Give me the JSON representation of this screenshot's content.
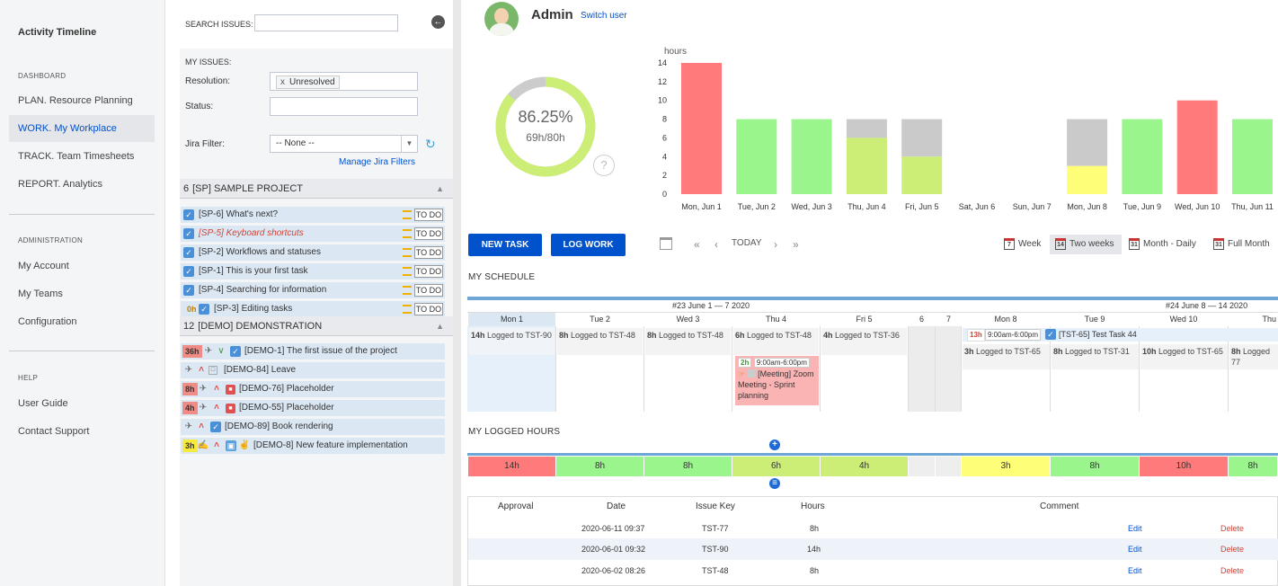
{
  "nav": {
    "app_title": "Activity Timeline",
    "dashboard_header": "DASHBOARD",
    "plan": "PLAN. Resource Planning",
    "work": "WORK. My Workplace",
    "track": "TRACK. Team Timesheets",
    "report": "REPORT. Analytics",
    "admin_header": "ADMINISTRATION",
    "my_account": "My Account",
    "my_teams": "My Teams",
    "configuration": "Configuration",
    "help_header": "HELP",
    "user_guide": "User Guide",
    "contact_support": "Contact Support"
  },
  "issues": {
    "search_label": "SEARCH ISSUES:",
    "my_issues": "MY ISSUES:",
    "resolution_label": "Resolution:",
    "resolution_value": "Unresolved",
    "resolution_remove": "x",
    "status_label": "Status:",
    "filter_label": "Jira Filter:",
    "filter_value": "-- None --",
    "manage_filters": "Manage Jira Filters",
    "group1": {
      "count": "6",
      "name": "[SP] SAMPLE PROJECT"
    },
    "sp_items": [
      {
        "title": "[SP-6] What's next?",
        "status": "TO DO"
      },
      {
        "title": "[SP-5] Keyboard shortcuts",
        "status": "TO DO"
      },
      {
        "title": "[SP-2] Workflows and statuses",
        "status": "TO DO"
      },
      {
        "title": "[SP-1] This is your first task",
        "status": "TO DO"
      },
      {
        "title": "[SP-4] Searching for information",
        "status": "TO DO"
      },
      {
        "title": "[SP-3] Editing tasks",
        "status": "TO DO",
        "badge": "0h"
      }
    ],
    "group2": {
      "count": "12",
      "name": "[DEMO] DEMONSTRATION"
    },
    "demo_items": [
      {
        "title": "[DEMO-1] The first issue of the project",
        "badge": "36h"
      },
      {
        "title": "[DEMO-84] Leave"
      },
      {
        "title": "[DEMO-76] Placeholder",
        "badge": "8h"
      },
      {
        "title": "[DEMO-55] Placeholder",
        "badge": "4h"
      },
      {
        "title": "[DEMO-89] Book rendering"
      },
      {
        "title": "[DEMO-8] New feature implementation",
        "badge": "3h"
      }
    ]
  },
  "user": {
    "name": "Admin",
    "switch": "Switch user"
  },
  "utilization": {
    "percent_text": "86.25%",
    "hours_text": "69h/80h",
    "percent": 86.25
  },
  "chart_data": {
    "type": "bar",
    "ylabel": "hours",
    "ylim": [
      0,
      14
    ],
    "yticks": [
      0,
      2,
      4,
      6,
      8,
      10,
      12,
      14
    ],
    "categories": [
      "Mon, Jun 1",
      "Tue, Jun 2",
      "Wed, Jun 3",
      "Thu, Jun 4",
      "Fri, Jun 5",
      "Sat, Jun 6",
      "Sun, Jun 7",
      "Mon, Jun 8",
      "Tue, Jun 9",
      "Wed, Jun 10",
      "Thu, Jun 11"
    ],
    "series": [
      {
        "name": "logged",
        "values": [
          14,
          8,
          8,
          6,
          4,
          0,
          0,
          3,
          8,
          10,
          8
        ]
      },
      {
        "name": "remaining",
        "values": [
          0,
          0,
          0,
          2,
          4,
          0,
          0,
          5,
          0,
          0,
          0
        ]
      }
    ],
    "colors": [
      "#ff7b7b",
      "#99f58c",
      "#99f58c",
      "#ccee77",
      "#ccee77",
      "#ffffff",
      "#ffffff",
      "#ffff77",
      "#99f58c",
      "#ff7b7b",
      "#99f58c"
    ],
    "remaining_color": "#cacaca"
  },
  "toolbar": {
    "new_task": "NEW TASK",
    "log_work": "LOG WORK",
    "today": "TODAY",
    "week": "Week",
    "two_weeks": "Two weeks",
    "month_daily": "Month - Daily",
    "full_month": "Full Month",
    "cal7": "7",
    "cal14": "14",
    "cal31a": "31",
    "cal31b": "31"
  },
  "schedule": {
    "title": "MY SCHEDULE",
    "week1": "#23 June 1 — 7 2020",
    "week2": "#24 June 8 — 14 2020",
    "days": [
      "Mon 1",
      "Tue 2",
      "Wed 3",
      "Thu 4",
      "Fri 5",
      "6",
      "7",
      "Mon 8",
      "Tue 9",
      "Wed 10",
      "Thu"
    ],
    "logs": [
      {
        "hours": "14h",
        "text": "Logged to TST-90"
      },
      {
        "hours": "8h",
        "text": "Logged to TST-48"
      },
      {
        "hours": "8h",
        "text": "Logged to TST-48"
      },
      {
        "hours": "6h",
        "text": "Logged to TST-48"
      },
      {
        "hours": "4h",
        "text": "Logged to TST-36"
      },
      {
        "hours": "3h",
        "text": "Logged to TST-65"
      },
      {
        "hours": "8h",
        "text": "Logged to TST-31"
      },
      {
        "hours": "10h",
        "text": "Logged to TST-65"
      },
      {
        "hours": "8h",
        "text": "Logged 77"
      }
    ],
    "meeting": {
      "hours": "2h",
      "time": "9:00am-6:00pm",
      "title": "[Meeting] Zoom Meeting - Sprint planning"
    },
    "task": {
      "hours": "13h",
      "time": "9:00am-6:00pm",
      "title": "[TST-65] Test Task 44"
    }
  },
  "logged": {
    "title": "MY LOGGED HOURS",
    "cells": [
      "14h",
      "8h",
      "8h",
      "6h",
      "4h",
      "",
      "",
      "3h",
      "8h",
      "10h",
      "8h"
    ]
  },
  "table": {
    "headers": {
      "approval": "Approval",
      "date": "Date",
      "issue": "Issue Key",
      "hours": "Hours",
      "comment": "Comment"
    },
    "rows": [
      {
        "date": "2020-06-11 09:37",
        "issue": "TST-77",
        "hours": "8h",
        "edit": "Edit",
        "delete": "Delete"
      },
      {
        "date": "2020-06-01 09:32",
        "issue": "TST-90",
        "hours": "14h",
        "edit": "Edit",
        "delete": "Delete"
      },
      {
        "date": "2020-06-02 08:26",
        "issue": "TST-48",
        "hours": "8h",
        "edit": "Edit",
        "delete": "Delete"
      }
    ]
  }
}
